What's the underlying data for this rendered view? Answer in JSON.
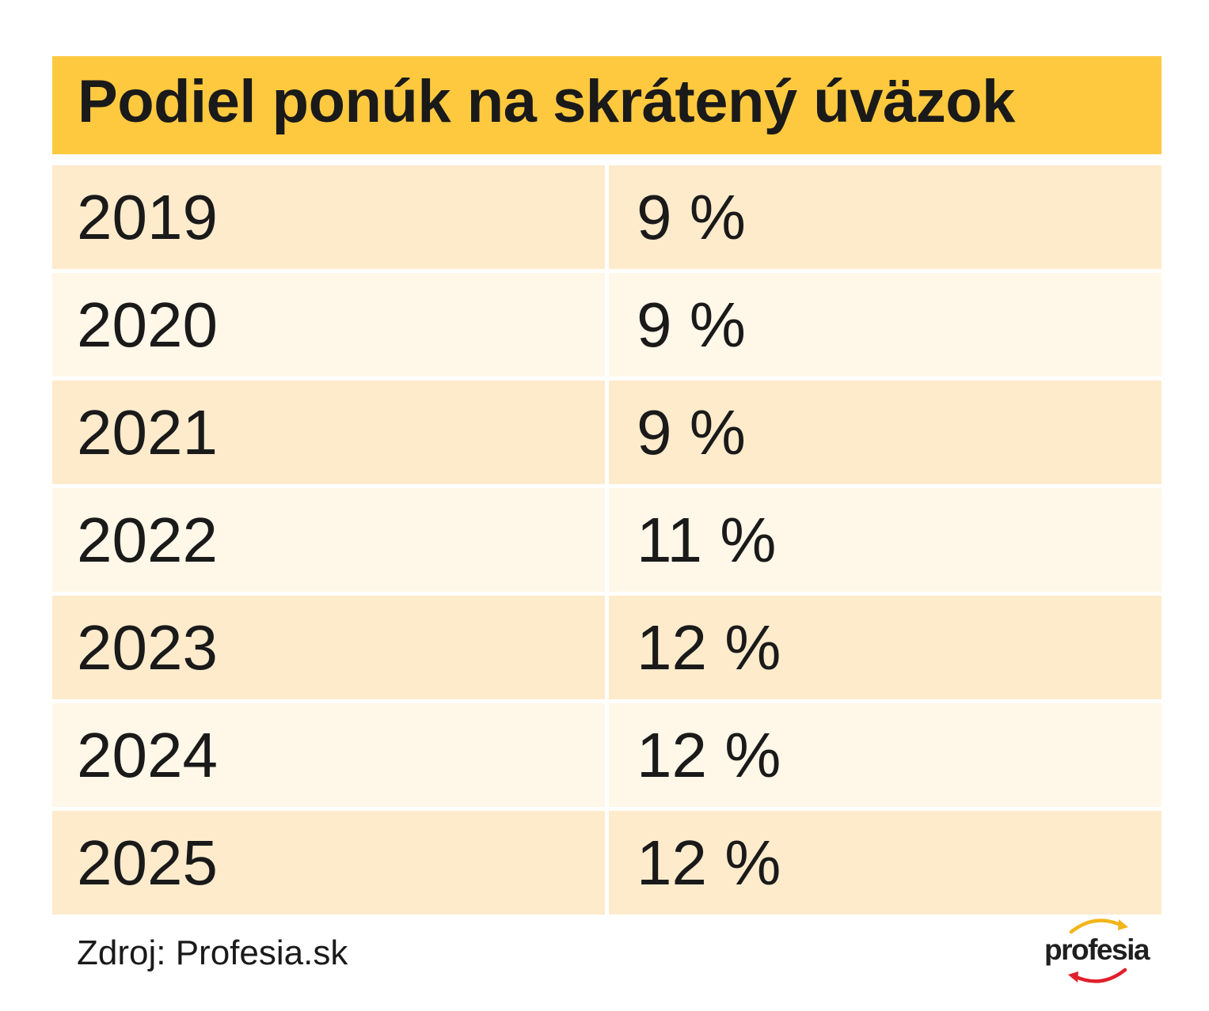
{
  "title": "Podiel ponúk na skrátený úväzok",
  "chart_data": {
    "type": "table",
    "title": "Podiel ponúk na skrátený úväzok",
    "columns": [
      "",
      ""
    ],
    "rows": [
      {
        "year": "2019",
        "value": "9 %"
      },
      {
        "year": "2020",
        "value": "9 %"
      },
      {
        "year": "2021",
        "value": "9 %"
      },
      {
        "year": "2022",
        "value": "11 %"
      },
      {
        "year": "2023",
        "value": "12 %"
      },
      {
        "year": "2024",
        "value": "12 %"
      },
      {
        "year": "2025",
        "value": "12 %"
      }
    ]
  },
  "source": "Zdroj: Profesia.sk",
  "logo": {
    "text": "profesia",
    "icon": "profesia-logo-arcs"
  },
  "colors": {
    "header": "#fec93f",
    "row_dark": "#feebcc",
    "row_light": "#fff7e8",
    "logo_arc_top": "#f2b519",
    "logo_arc_bottom": "#e0202a"
  }
}
